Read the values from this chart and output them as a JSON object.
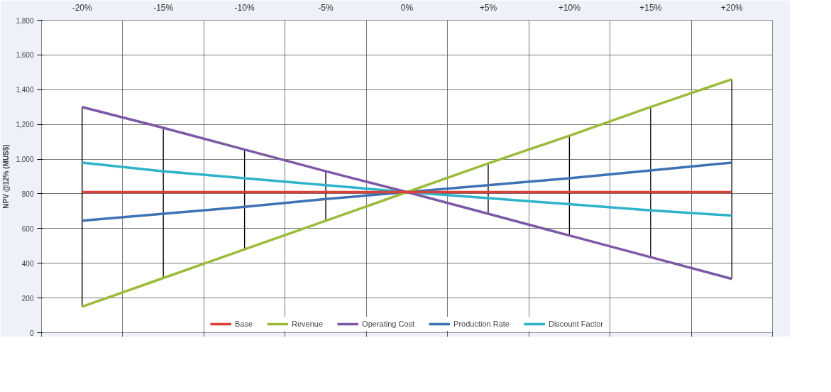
{
  "chart_data": {
    "type": "line",
    "ylabel": "NPV @12% (MUS$)",
    "categories": [
      "-20%",
      "-15%",
      "-10%",
      "-5%",
      "0%",
      "+5%",
      "+10%",
      "+15%",
      "+20%"
    ],
    "series": [
      {
        "name": "Base",
        "color": "#d9413a",
        "values": [
          810,
          810,
          810,
          810,
          810,
          810,
          810,
          810,
          810
        ]
      },
      {
        "name": "Revenue",
        "color": "#9cbb3a",
        "values": [
          150,
          315,
          480,
          645,
          810,
          975,
          1135,
          1300,
          1460
        ]
      },
      {
        "name": "Operating Cost",
        "color": "#7b59a6",
        "values": [
          1300,
          1180,
          1055,
          930,
          810,
          685,
          560,
          435,
          310
        ]
      },
      {
        "name": "Production Rate",
        "color": "#3f72b4",
        "values": [
          645,
          685,
          725,
          770,
          810,
          850,
          890,
          935,
          980
        ]
      },
      {
        "name": "Discount Factor",
        "color": "#2fb3c9",
        "values": [
          980,
          930,
          890,
          850,
          810,
          775,
          740,
          705,
          675
        ]
      },
      {
        "type": "bar",
        "color": "#000000",
        "base": [
          150,
          315,
          480,
          645,
          null,
          685,
          560,
          435,
          310
        ],
        "values": [
          1150,
          865,
          575,
          285,
          null,
          290,
          575,
          865,
          1150
        ]
      }
    ],
    "ylim": [
      0,
      1800
    ],
    "yticks": [
      {
        "value": 0,
        "label": "0"
      },
      {
        "value": 200,
        "label": "200"
      },
      {
        "value": 400,
        "label": "400"
      },
      {
        "value": 600,
        "label": "600"
      },
      {
        "value": 800,
        "label": "800"
      },
      {
        "value": 1000,
        "label": "1,000"
      },
      {
        "value": 1200,
        "label": "1,200"
      },
      {
        "value": 1400,
        "label": "1,400"
      },
      {
        "value": 1600,
        "label": "1,600"
      },
      {
        "value": 1800,
        "label": "1,800"
      }
    ],
    "grid": true,
    "legend": "bottom",
    "marker": "none",
    "line_style": "solid"
  }
}
